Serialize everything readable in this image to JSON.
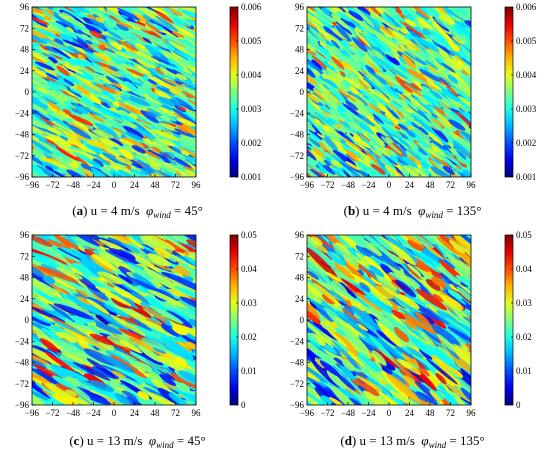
{
  "chart_data": [
    {
      "type": "heatmap",
      "panel": "a",
      "caption": {
        "label": "a",
        "text": "u = 4 m/s",
        "phi": "φ",
        "phi_sub": "wind",
        "angle_text": "= 45°"
      },
      "x_ticks": [
        "−96",
        "−72",
        "−48",
        "−24",
        "0",
        "24",
        "48",
        "72",
        "96"
      ],
      "y_ticks": [
        "96",
        "72",
        "48",
        "24",
        "0",
        "−24",
        "−48",
        "−72",
        "−96"
      ],
      "xlim": [
        -96,
        96
      ],
      "ylim": [
        -96,
        96
      ],
      "colorbar": {
        "ticks": [
          "0.006",
          "0.005",
          "0.004",
          "0.003",
          "0.002",
          "0.001"
        ],
        "range": [
          0.001,
          0.006
        ]
      },
      "wind_direction_deg": 45,
      "texture": "fine"
    },
    {
      "type": "heatmap",
      "panel": "b",
      "caption": {
        "label": "b",
        "text": "u = 4 m/s",
        "phi": "φ",
        "phi_sub": "wind",
        "angle_text": "= 135°"
      },
      "x_ticks": [
        "−96",
        "−72",
        "−48",
        "−24",
        "0",
        "24",
        "48",
        "72",
        "96"
      ],
      "y_ticks": [
        "96",
        "72",
        "48",
        "24",
        "0",
        "−24",
        "−48",
        "−72",
        "−96"
      ],
      "xlim": [
        -96,
        96
      ],
      "ylim": [
        -96,
        96
      ],
      "colorbar": {
        "ticks": [
          "0.006",
          "0.005",
          "0.004",
          "0.003",
          "0.002",
          "0.001"
        ],
        "range": [
          0.001,
          0.006
        ]
      },
      "wind_direction_deg": 135,
      "texture": "fine"
    },
    {
      "type": "heatmap",
      "panel": "c",
      "caption": {
        "label": "c",
        "text": "u = 13 m/s",
        "phi": "φ",
        "phi_sub": "wind",
        "angle_text": "= 45°"
      },
      "x_ticks": [
        "−96",
        "−72",
        "−48",
        "−24",
        "0",
        "24",
        "48",
        "72",
        "96"
      ],
      "y_ticks": [
        "96",
        "72",
        "48",
        "24",
        "0",
        "−24",
        "−48",
        "−72",
        "−96"
      ],
      "xlim": [
        -96,
        96
      ],
      "ylim": [
        -96,
        96
      ],
      "colorbar": {
        "ticks": [
          "0.05",
          "0.04",
          "0.03",
          "0.02",
          "0.01",
          "0"
        ],
        "range": [
          0,
          0.05
        ]
      },
      "wind_direction_deg": 45,
      "texture": "coarse"
    },
    {
      "type": "heatmap",
      "panel": "d",
      "caption": {
        "label": "d",
        "text": "u = 13 m/s",
        "phi": "φ",
        "phi_sub": "wind",
        "angle_text": "= 135°"
      },
      "x_ticks": [
        "−96",
        "−72",
        "−48",
        "−24",
        "0",
        "24",
        "48",
        "72",
        "96"
      ],
      "y_ticks": [
        "96",
        "72",
        "48",
        "24",
        "0",
        "−24",
        "−48",
        "−72",
        "−96"
      ],
      "xlim": [
        -96,
        96
      ],
      "ylim": [
        -96,
        96
      ],
      "colorbar": {
        "ticks": [
          "0.05",
          "0.04",
          "0.03",
          "0.02",
          "0.01",
          "0"
        ],
        "range": [
          0,
          0.05
        ]
      },
      "wind_direction_deg": 135,
      "texture": "coarse"
    }
  ]
}
